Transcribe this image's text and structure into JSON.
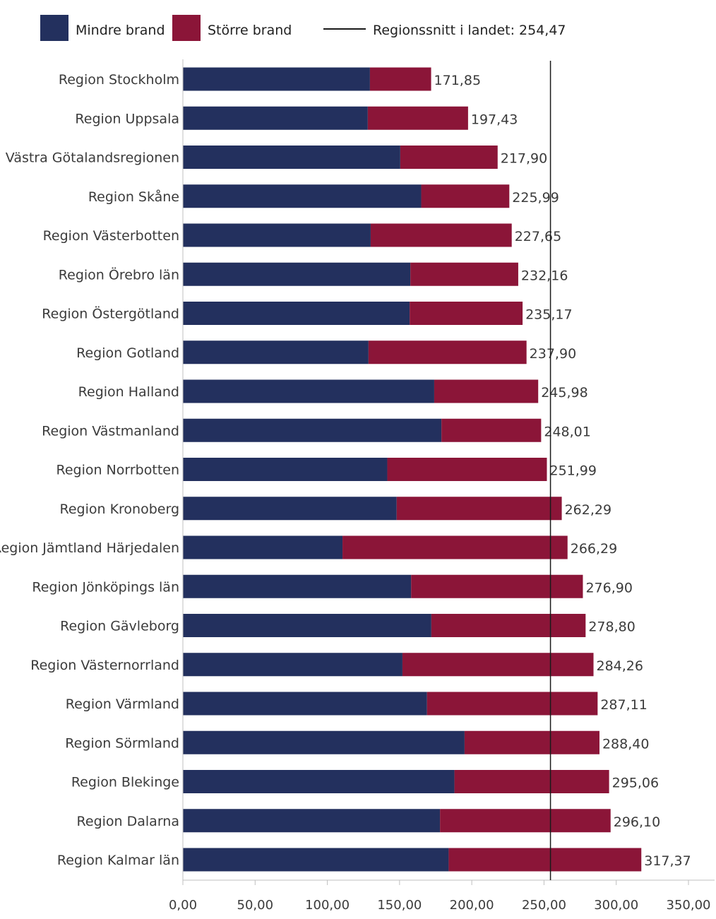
{
  "chart_data": {
    "type": "bar",
    "orientation": "horizontal",
    "stacked": true,
    "categories": [
      "Region Stockholm",
      "Region Uppsala",
      "Västra Götalandsregionen",
      "Region Skåne",
      "Region Västerbotten",
      "Region Örebro län",
      "Region Östergötland",
      "Region Gotland",
      "Region Halland",
      "Region Västmanland",
      "Region Norrbotten",
      "Region Kronoberg",
      "Region Jämtland Härjedalen",
      "Region Jönköpings län",
      "Region Gävleborg",
      "Region Västernorrland",
      "Region Värmland",
      "Region Sörmland",
      "Region Blekinge",
      "Region Dalarna",
      "Region Kalmar län"
    ],
    "series": [
      {
        "name": "Mindre brand",
        "color": "#23305e",
        "values": [
          129.5,
          128,
          150.5,
          165,
          130,
          157.5,
          157,
          128.5,
          174,
          179,
          141.5,
          148,
          110.5,
          158,
          172,
          152,
          169,
          195,
          188,
          178,
          184
        ]
      },
      {
        "name": "Större brand",
        "color": "#8b1538",
        "values": [
          42.35,
          69.43,
          67.4,
          60.99,
          97.65,
          74.66,
          78.17,
          109.4,
          71.98,
          69.01,
          110.49,
          114.29,
          155.79,
          118.9,
          106.8,
          132.26,
          118.11,
          93.4,
          107.06,
          118.1,
          133.37
        ]
      }
    ],
    "totals": [
      "171,85",
      "197,43",
      "217,90",
      "225,99",
      "227,65",
      "232,16",
      "235,17",
      "237,90",
      "245,98",
      "248,01",
      "251,99",
      "262,29",
      "266,29",
      "276,90",
      "278,80",
      "284,26",
      "287,11",
      "288,40",
      "295,06",
      "296,10",
      "317,37"
    ],
    "reference_line": {
      "label": "Regionssnitt i landet: 254,47",
      "value": 254.47,
      "color": "#1a1a1a"
    },
    "x_ticks": [
      0,
      50,
      100,
      150,
      200,
      250,
      300,
      350
    ],
    "x_tick_labels": [
      "0,00",
      "50,00",
      "100,00",
      "150,00",
      "200,00",
      "250,00",
      "300,00",
      "350,00"
    ],
    "xlim": [
      0,
      350
    ],
    "title": "",
    "xlabel": "",
    "ylabel": "",
    "legend_position": "top",
    "grid": false
  }
}
